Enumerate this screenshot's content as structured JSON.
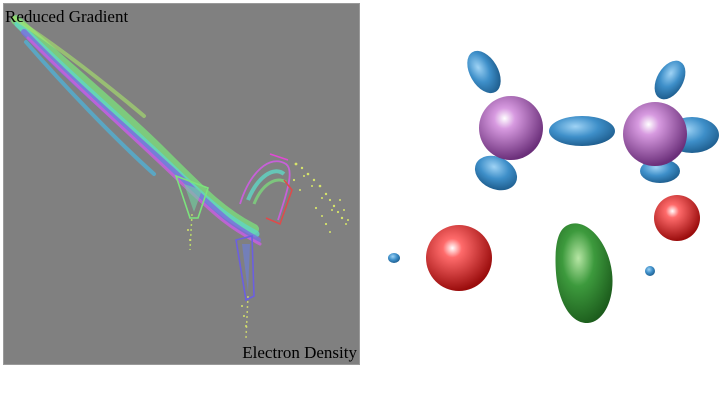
{
  "plot": {
    "ylabel": "Reduced Gradient",
    "xlabel": "Electron Density",
    "background": "#808080"
  },
  "molecule": {
    "lobe_colors": {
      "blue": "#2f7fb8",
      "purple": "#9b4fa6",
      "red": "#d41a1a",
      "green": "#2e8b2e"
    }
  },
  "caption": {
    "text": ""
  }
}
